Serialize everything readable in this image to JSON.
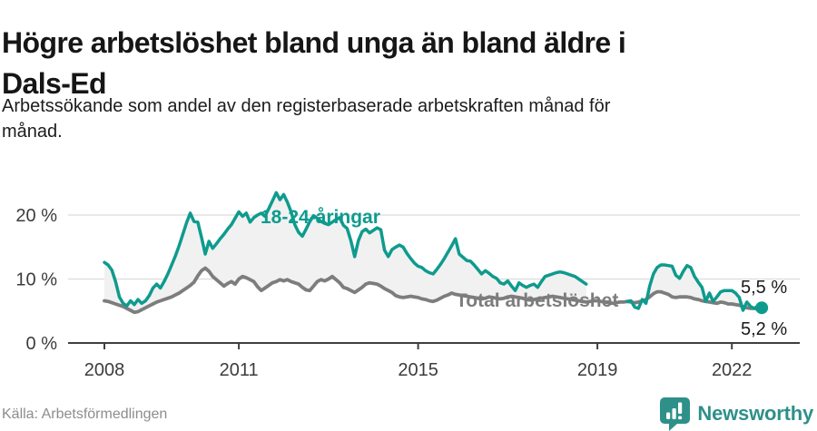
{
  "header": {
    "title_lines": [
      "Högre arbetslöshet bland unga än bland äldre i",
      "Dals-Ed"
    ],
    "subtitle_lines": [
      "Arbetssökande som andel av den registerbaserade arbetskraften månad för",
      "månad."
    ]
  },
  "footer": {
    "source": "Källa: Arbetsförmedlingen",
    "brand": "Newsworthy"
  },
  "colors": {
    "accent_teal": "#0e9b8e",
    "line_gray": "#7d7d7d",
    "band_fill": "#f1f1f1",
    "grid": "#dcdcdc",
    "axis": "#3f3f3f",
    "tick_text": "#3c3c3c",
    "end_label_text": "#1a1a1a",
    "logo_teal": "#2e9089"
  },
  "chart_data": {
    "type": "line",
    "title": "Högre arbetslöshet bland unga än bland äldre i Dals-Ed",
    "unit": "percent",
    "frequency": "monthly",
    "start": "2008-01",
    "end": "2022-09",
    "ylim": [
      0,
      26
    ],
    "grid": "horizontal",
    "legend_position": "inline-labels",
    "x_ticks": [
      {
        "year": 2008,
        "label": "2008"
      },
      {
        "year": 2011,
        "label": "2011"
      },
      {
        "year": 2015,
        "label": "2015"
      },
      {
        "year": 2019,
        "label": "2019"
      },
      {
        "year": 2022,
        "label": "2022"
      }
    ],
    "y_ticks": [
      {
        "value": 0,
        "label": "0 %"
      },
      {
        "value": 10,
        "label": "10 %"
      },
      {
        "value": 20,
        "label": "20 %"
      }
    ],
    "series": [
      {
        "name": "18-24-åringar",
        "color": "#0e9b8e",
        "end_label": "5,5 %",
        "end_value": 5.5,
        "values": [
          12.6,
          12.2,
          11.4,
          9.6,
          7.2,
          6.2,
          5.8,
          6.6,
          6.0,
          6.8,
          6.2,
          6.6,
          7.4,
          8.6,
          9.2,
          8.6,
          9.6,
          10.8,
          12.2,
          13.6,
          15.2,
          17.0,
          18.8,
          20.3,
          19.0,
          18.9,
          16.5,
          13.9,
          15.9,
          14.8,
          15.5,
          16.3,
          17.0,
          17.8,
          18.5,
          19.5,
          20.5,
          19.8,
          20.3,
          18.9,
          19.6,
          20.0,
          20.3,
          19.8,
          21.0,
          22.2,
          23.5,
          22.4,
          23.2,
          22.0,
          20.5,
          18.5,
          17.3,
          16.7,
          17.8,
          19.0,
          19.9,
          19.5,
          19.0,
          18.7,
          18.5,
          18.9,
          19.3,
          19.6,
          18.4,
          17.9,
          16.0,
          13.5,
          16.0,
          17.4,
          17.8,
          17.2,
          17.6,
          18.0,
          17.7,
          14.5,
          13.5,
          14.6,
          15.0,
          15.3,
          15.0,
          14.0,
          13.2,
          12.5,
          12.0,
          11.8,
          11.3,
          11.0,
          10.8,
          11.5,
          12.3,
          13.2,
          14.2,
          15.2,
          16.3,
          13.9,
          13.4,
          12.9,
          12.8,
          12.2,
          11.5,
          10.8,
          11.3,
          10.9,
          10.4,
          10.1,
          9.4,
          9.2,
          9.7,
          8.9,
          8.2,
          9.4,
          9.0,
          8.7,
          9.0,
          9.2,
          8.7,
          9.6,
          10.4,
          10.6,
          10.8,
          11.0,
          11.1,
          11.0,
          10.8,
          10.6,
          10.4,
          10.0,
          9.6,
          9.2,
          null,
          null,
          null,
          null,
          null,
          null,
          null,
          null,
          null,
          null,
          6.5,
          6.6,
          5.6,
          5.4,
          6.8,
          6.2,
          8.9,
          10.8,
          11.8,
          12.2,
          12.2,
          12.1,
          12.0,
          10.6,
          10.1,
          11.2,
          12.1,
          11.8,
          10.4,
          9.5,
          8.7,
          6.5,
          7.8,
          6.5,
          7.2,
          8.0,
          8.2,
          8.2,
          8.2,
          7.8,
          7.1,
          5.1,
          6.4,
          5.7,
          5.4,
          5.8,
          5.5
        ]
      },
      {
        "name": "Total arbetslöshet",
        "color": "#7d7d7d",
        "end_label": "5,2 %",
        "end_value": 5.2,
        "values": [
          6.6,
          6.5,
          6.3,
          6.1,
          5.9,
          5.7,
          5.4,
          5.1,
          4.8,
          4.9,
          5.2,
          5.5,
          5.8,
          6.1,
          6.4,
          6.6,
          6.8,
          7.0,
          7.2,
          7.5,
          7.8,
          8.2,
          8.6,
          9.0,
          9.5,
          10.5,
          11.3,
          11.7,
          11.2,
          10.4,
          9.9,
          9.4,
          8.9,
          9.3,
          9.6,
          9.2,
          10.0,
          10.4,
          10.2,
          9.9,
          9.6,
          8.8,
          8.2,
          8.6,
          9.0,
          9.4,
          9.6,
          9.9,
          9.7,
          9.9,
          9.6,
          9.4,
          9.2,
          8.7,
          8.3,
          8.2,
          8.9,
          9.6,
          9.9,
          9.7,
          10.0,
          10.4,
          9.9,
          9.4,
          8.7,
          8.5,
          8.2,
          7.9,
          8.3,
          8.7,
          9.2,
          9.4,
          9.3,
          9.2,
          8.9,
          8.5,
          8.2,
          7.9,
          7.4,
          7.2,
          7.1,
          7.2,
          7.3,
          7.2,
          7.1,
          6.9,
          6.8,
          6.6,
          6.5,
          6.7,
          7.0,
          7.3,
          7.5,
          7.8,
          7.6,
          7.5,
          7.4,
          7.3,
          7.2,
          7.1,
          7.0,
          6.9,
          7.0,
          7.2,
          7.1,
          7.0,
          6.9,
          7.0,
          7.2,
          7.3,
          7.2,
          7.1,
          7.0,
          6.8,
          6.7,
          6.8,
          6.9,
          7.0,
          7.1,
          7.2,
          7.3,
          7.2,
          7.1,
          7.0,
          6.9,
          6.8,
          6.7,
          6.6,
          6.5,
          6.4,
          6.5,
          6.6,
          6.6,
          6.5,
          6.4,
          6.3,
          6.2,
          6.3,
          6.4,
          6.4,
          6.5,
          6.4,
          6.3,
          6.4,
          6.6,
          6.8,
          7.2,
          7.7,
          8.0,
          8.0,
          7.8,
          7.6,
          7.2,
          7.1,
          7.2,
          7.2,
          7.2,
          7.1,
          6.9,
          6.8,
          6.6,
          6.5,
          6.4,
          6.3,
          6.2,
          6.4,
          6.3,
          6.1,
          6.1,
          6.0,
          5.9,
          5.7,
          5.5,
          5.4,
          5.4,
          5.3,
          5.2
        ]
      }
    ]
  }
}
